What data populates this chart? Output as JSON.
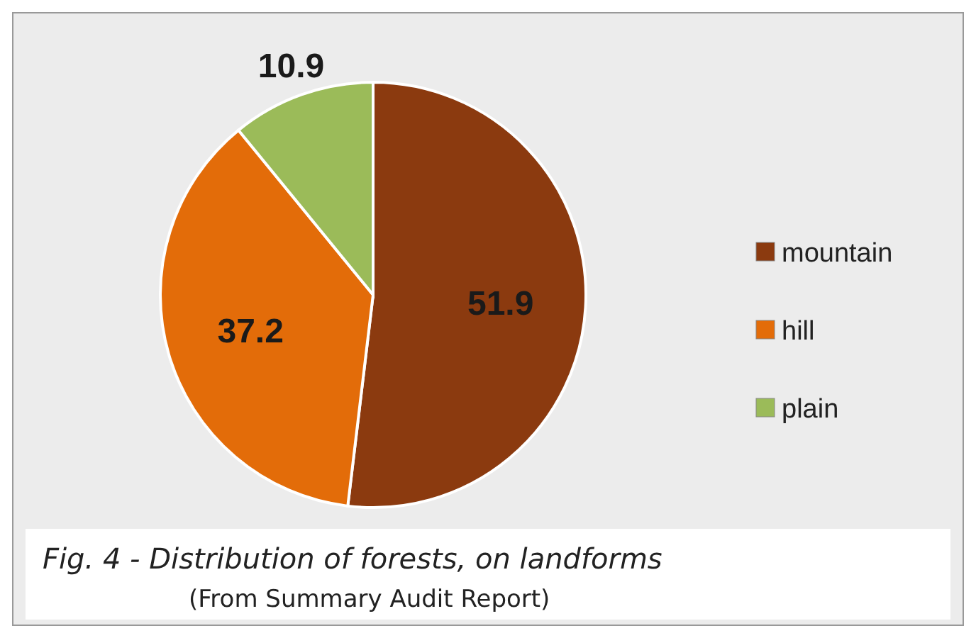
{
  "chart_data": {
    "type": "pie",
    "categories": [
      "mountain",
      "hill",
      "plain"
    ],
    "values": [
      51.9,
      37.2,
      10.9
    ],
    "colors": [
      "#8b3a0f",
      "#e36c09",
      "#9bbb59"
    ],
    "data_labels": true,
    "legend": "right",
    "annotations": [
      "Fig. 4 - Distribution of forests, on  landforms",
      "(From Summary Audit Report)"
    ]
  }
}
